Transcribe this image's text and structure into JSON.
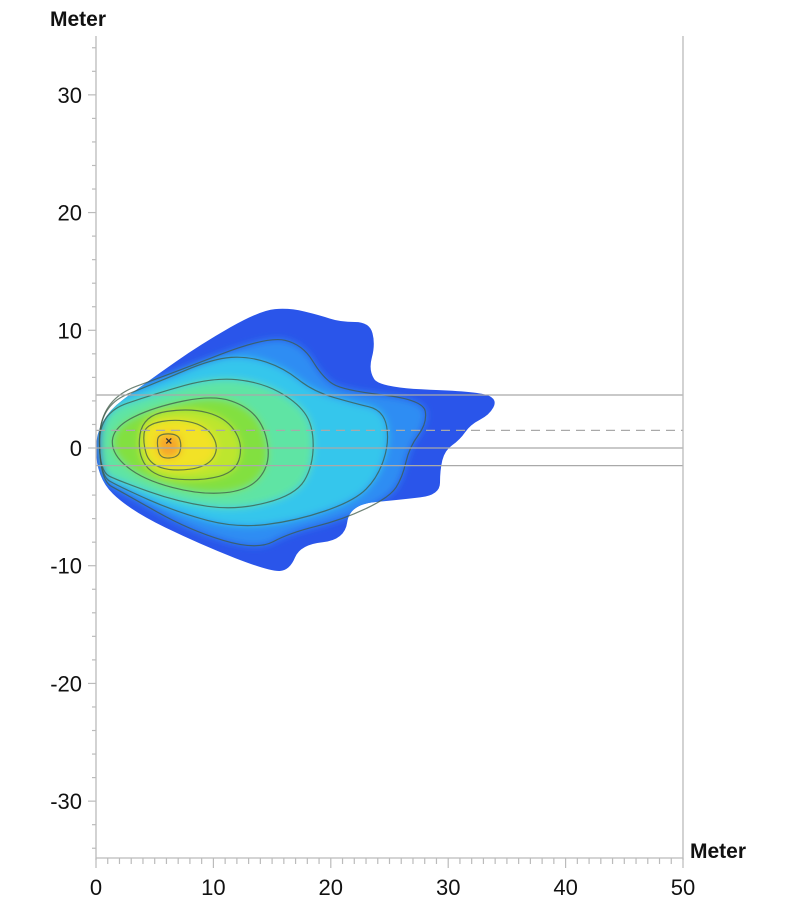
{
  "chart_data": {
    "type": "heatmap",
    "subtype": "filled-contour",
    "xlabel": "Meter",
    "ylabel": "Meter",
    "xlim": [
      0,
      50
    ],
    "ylim": [
      -35,
      35
    ],
    "xticks": [
      0,
      10,
      20,
      30,
      40,
      50
    ],
    "yticks": [
      30,
      20,
      10,
      0,
      -10,
      -20,
      -30
    ],
    "grid": false,
    "colormap": [
      "#2a55ea",
      "#2f8df3",
      "#36c6ec",
      "#5ee4a4",
      "#82e040",
      "#bde62e",
      "#f2e226",
      "#f5a72a"
    ],
    "peak": {
      "x": 6.2,
      "y": 0.6
    },
    "contours": [
      [
        [
          0,
          2.4
        ],
        [
          4.6,
          5.8
        ],
        [
          8.9,
          8.8
        ],
        [
          14,
          11.7
        ],
        [
          16.5,
          11.9
        ],
        [
          19,
          11.3
        ],
        [
          20.8,
          10.7
        ],
        [
          23.3,
          10.7
        ],
        [
          23.8,
          8.8
        ],
        [
          23.2,
          6.6
        ],
        [
          24.2,
          5.1
        ],
        [
          32.7,
          4.8
        ],
        [
          34.2,
          4.1
        ],
        [
          33.5,
          2.8
        ],
        [
          31.9,
          2.0
        ],
        [
          31,
          0.7
        ],
        [
          29.7,
          -0.2
        ],
        [
          29.3,
          -1.9
        ],
        [
          29.3,
          -4.0
        ],
        [
          25.9,
          -4.4
        ],
        [
          21.6,
          -4.8
        ],
        [
          21.2,
          -7.8
        ],
        [
          17.4,
          -8.2
        ],
        [
          16.5,
          -10.4
        ],
        [
          14.8,
          -10.5
        ],
        [
          8.9,
          -8.2
        ],
        [
          2.9,
          -5.3
        ],
        [
          0,
          -2.5
        ]
      ],
      [
        [
          0.3,
          4.1
        ],
        [
          6.6,
          6.4
        ],
        [
          14.6,
          9.5
        ],
        [
          17.6,
          8.8
        ],
        [
          19.3,
          6.0
        ],
        [
          21,
          4.9
        ],
        [
          27.9,
          4.1
        ],
        [
          28.2,
          2.1
        ],
        [
          26.7,
          0.1
        ],
        [
          26.1,
          -2.5
        ],
        [
          25,
          -4.2
        ],
        [
          21,
          -6.1
        ],
        [
          16.5,
          -7.2
        ],
        [
          13.7,
          -8.7
        ],
        [
          8,
          -7
        ],
        [
          2.3,
          -3.8
        ],
        [
          0.3,
          -2.7
        ]
      ],
      [
        [
          0.3,
          3.6
        ],
        [
          5,
          5.5
        ],
        [
          10,
          7.6
        ],
        [
          13,
          7.8
        ],
        [
          16,
          6.8
        ],
        [
          18.5,
          4.8
        ],
        [
          22,
          3.8
        ],
        [
          24.5,
          3.2
        ],
        [
          25,
          0.5
        ],
        [
          24,
          -2.5
        ],
        [
          22,
          -4.5
        ],
        [
          17,
          -6.2
        ],
        [
          12,
          -6.8
        ],
        [
          7,
          -5.5
        ],
        [
          2,
          -3.3
        ],
        [
          0.3,
          -2.3
        ]
      ],
      [
        [
          0.3,
          3
        ],
        [
          5,
          4.6
        ],
        [
          10,
          6
        ],
        [
          14,
          5.6
        ],
        [
          17,
          4
        ],
        [
          18.5,
          2
        ],
        [
          18.5,
          -1.5
        ],
        [
          17,
          -4
        ],
        [
          12,
          -5.3
        ],
        [
          7,
          -4.6
        ],
        [
          2,
          -2.8
        ],
        [
          0.3,
          -2
        ]
      ],
      [
        [
          1.5,
          1.8
        ],
        [
          5,
          3.5
        ],
        [
          10,
          4.5
        ],
        [
          13,
          3.5
        ],
        [
          14.5,
          1.5
        ],
        [
          14.8,
          -1.5
        ],
        [
          13,
          -3.6
        ],
        [
          9,
          -4
        ],
        [
          4,
          -2.7
        ],
        [
          1.3,
          -0.5
        ]
      ],
      [
        [
          4,
          2.8
        ],
        [
          8,
          3.4
        ],
        [
          11,
          2.6
        ],
        [
          12.5,
          0.5
        ],
        [
          12,
          -2
        ],
        [
          9,
          -2.8
        ],
        [
          5,
          -2.5
        ],
        [
          3.5,
          -0.5
        ]
      ],
      [
        [
          4.2,
          2
        ],
        [
          7,
          2.5
        ],
        [
          9.5,
          1.8
        ],
        [
          10.5,
          0
        ],
        [
          9.5,
          -1.6
        ],
        [
          6.5,
          -2
        ],
        [
          4.5,
          -1.3
        ],
        [
          4,
          0.5
        ]
      ],
      [
        [
          5.3,
          1.2
        ],
        [
          7,
          1.2
        ],
        [
          7.3,
          0.2
        ],
        [
          7,
          -0.8
        ],
        [
          5.5,
          -0.9
        ],
        [
          5.2,
          0.2
        ]
      ]
    ],
    "reference_lines": [
      {
        "y": 4.5,
        "style": "solid"
      },
      {
        "y": 1.5,
        "style": "dashed"
      },
      {
        "y": 0,
        "style": "solid"
      },
      {
        "y": -1.5,
        "style": "solid"
      }
    ]
  }
}
